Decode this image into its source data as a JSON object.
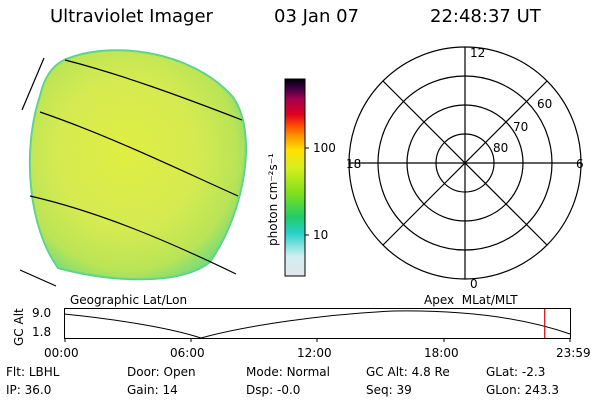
{
  "header": {
    "title": "Ultraviolet Imager",
    "date": "03 Jan 07",
    "time": "22:48:37 UT"
  },
  "colorbar": {
    "unit_label": "photon cm⁻²s⁻¹",
    "ticks": [
      "100",
      "10"
    ]
  },
  "polar_plot": {
    "mlt_labels": {
      "top": "12",
      "right": "6",
      "bottom": "0",
      "left": "18"
    },
    "lat_labels": [
      "60",
      "70",
      "80"
    ]
  },
  "captions": {
    "left": "Geographic Lat/Lon",
    "right": "Apex  MLat/MLT"
  },
  "altitude_plot": {
    "ylabel": "GC Alt",
    "yticks": [
      "9.0",
      "1.8"
    ],
    "xticks": [
      "00:00",
      "06:00",
      "12:00",
      "18:00",
      "23:59"
    ],
    "marker_time": "22:48",
    "marker_color": "#d00000"
  },
  "status": {
    "row1": [
      {
        "label": "Flt:",
        "value": "LBHL"
      },
      {
        "label": "Door:",
        "value": "Open"
      },
      {
        "label": "Mode:",
        "value": "Normal"
      },
      {
        "label": "GC Alt:",
        "value": "4.8 Re"
      },
      {
        "label": "GLat:",
        "value": "-2.3"
      }
    ],
    "row2": [
      {
        "label": "IP:",
        "value": "36.0"
      },
      {
        "label": "Gain:",
        "value": "14"
      },
      {
        "label": "Dsp:",
        "value": "-0.0"
      },
      {
        "label": "Seq:",
        "value": "39"
      },
      {
        "label": "GLon:",
        "value": "243.3"
      }
    ]
  },
  "colors": {
    "image_base": "#d8ea4a",
    "image_edge": "#4fd680",
    "colorbar_stops": [
      "#e4e4ee",
      "#cfeff0",
      "#25d0c8",
      "#22cc66",
      "#7ee01c",
      "#d8ee20",
      "#ffe000",
      "#ffa000",
      "#ff5000",
      "#e00020",
      "#a00050",
      "#300040",
      "#000000"
    ]
  }
}
